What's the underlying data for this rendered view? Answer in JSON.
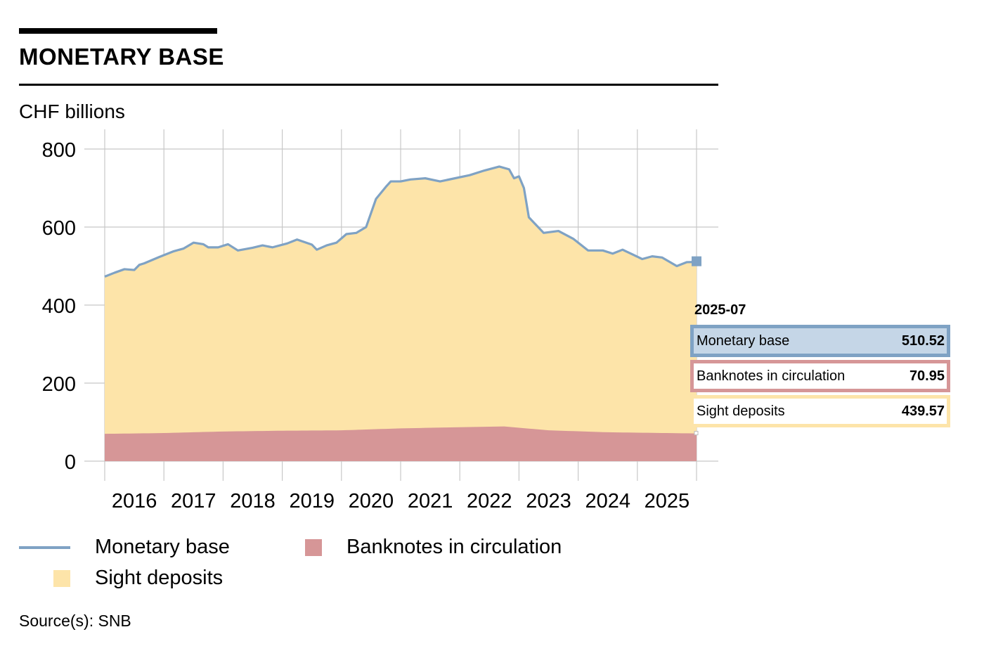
{
  "header": {
    "title": "MONETARY BASE",
    "unit": "CHF billions"
  },
  "chart_data": {
    "type": "area",
    "title": "MONETARY BASE",
    "ylabel": "CHF billions",
    "ylim": [
      0,
      800
    ],
    "yticks": [
      "0",
      "200",
      "400",
      "600",
      "800"
    ],
    "xticks": [
      "2016",
      "2017",
      "2018",
      "2019",
      "2020",
      "2021",
      "2022",
      "2023",
      "2024",
      "2025"
    ],
    "x_range": [
      "2015-07",
      "2025-07"
    ],
    "grid": true,
    "stacked": true,
    "series": [
      {
        "name": "Monetary base",
        "kind": "line",
        "color": "#7fa2c4",
        "points": [
          [
            "2015-07",
            473
          ],
          [
            "2015-09",
            483
          ],
          [
            "2015-11",
            492
          ],
          [
            "2016-01",
            490
          ],
          [
            "2016-02",
            503
          ],
          [
            "2016-03",
            507
          ],
          [
            "2016-06",
            523
          ],
          [
            "2016-09",
            538
          ],
          [
            "2016-11",
            545
          ],
          [
            "2017-01",
            560
          ],
          [
            "2017-03",
            556
          ],
          [
            "2017-04",
            548
          ],
          [
            "2017-06",
            548
          ],
          [
            "2017-08",
            556
          ],
          [
            "2017-10",
            540
          ],
          [
            "2018-01",
            547
          ],
          [
            "2018-03",
            553
          ],
          [
            "2018-05",
            548
          ],
          [
            "2018-08",
            558
          ],
          [
            "2018-10",
            568
          ],
          [
            "2019-01",
            555
          ],
          [
            "2019-02",
            542
          ],
          [
            "2019-04",
            553
          ],
          [
            "2019-06",
            560
          ],
          [
            "2019-08",
            582
          ],
          [
            "2019-10",
            585
          ],
          [
            "2019-12",
            600
          ],
          [
            "2020-02",
            672
          ],
          [
            "2020-04",
            703
          ],
          [
            "2020-05",
            717
          ],
          [
            "2020-07",
            717
          ],
          [
            "2020-09",
            722
          ],
          [
            "2020-12",
            725
          ],
          [
            "2021-03",
            717
          ],
          [
            "2021-06",
            725
          ],
          [
            "2021-09",
            733
          ],
          [
            "2021-12",
            745
          ],
          [
            "2022-03",
            755
          ],
          [
            "2022-05",
            748
          ],
          [
            "2022-06",
            725
          ],
          [
            "2022-07",
            730
          ],
          [
            "2022-08",
            700
          ],
          [
            "2022-09",
            625
          ],
          [
            "2022-12",
            585
          ],
          [
            "2023-03",
            590
          ],
          [
            "2023-06",
            570
          ],
          [
            "2023-09",
            540
          ],
          [
            "2023-12",
            540
          ],
          [
            "2024-02",
            532
          ],
          [
            "2024-04",
            542
          ],
          [
            "2024-06",
            530
          ],
          [
            "2024-08",
            518
          ],
          [
            "2024-10",
            525
          ],
          [
            "2024-12",
            522
          ],
          [
            "2025-03",
            500
          ],
          [
            "2025-05",
            510
          ],
          [
            "2025-07",
            510.52
          ]
        ]
      },
      {
        "name": "Banknotes in circulation",
        "kind": "area",
        "color": "#d69697",
        "points": [
          [
            "2015-07",
            70
          ],
          [
            "2016-07",
            72
          ],
          [
            "2017-07",
            76
          ],
          [
            "2018-07",
            78
          ],
          [
            "2019-07",
            79
          ],
          [
            "2020-07",
            84
          ],
          [
            "2021-07",
            87
          ],
          [
            "2022-04",
            89
          ],
          [
            "2023-01",
            79
          ],
          [
            "2024-01",
            74
          ],
          [
            "2025-07",
            70.95
          ]
        ]
      },
      {
        "name": "Sight deposits",
        "kind": "area",
        "color": "#fde4a9",
        "note": "stacked on top of Banknotes in circulation up to the Monetary base line",
        "last_value": 439.57
      }
    ],
    "tooltip": {
      "date": "2025-07",
      "rows": [
        {
          "label": "Monetary base",
          "value": "510.52"
        },
        {
          "label": "Banknotes in circulation",
          "value": "70.95"
        },
        {
          "label": "Sight deposits",
          "value": "439.57"
        }
      ]
    }
  },
  "legend": {
    "monetary_base": "Monetary base",
    "banknotes": "Banknotes in circulation",
    "sight_deposits": "Sight deposits"
  },
  "footer": {
    "source": "Source(s): SNB"
  },
  "colors": {
    "monetary_base": "#7fa2c4",
    "banknotes": "#d69697",
    "sight_deposits": "#fde4a9",
    "grid": "#c8c8c8"
  }
}
